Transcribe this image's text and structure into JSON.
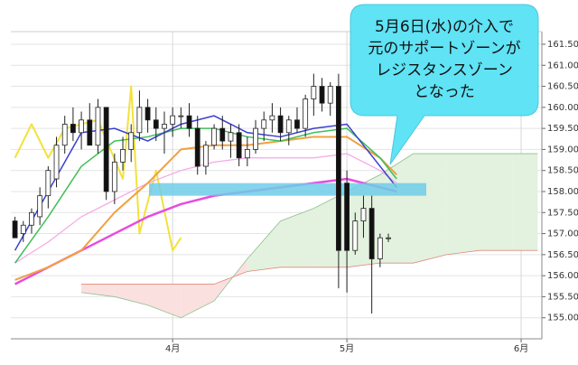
{
  "chart_data": {
    "type": "candlestick",
    "xlim": [
      -0.5,
      63.5
    ],
    "ylim": [
      154.5,
      161.8
    ],
    "xticks": [
      {
        "value": 19,
        "label": "4月"
      },
      {
        "value": 40,
        "label": "5月"
      },
      {
        "value": 61,
        "label": "6月"
      }
    ],
    "yticks": [
      {
        "value": 155,
        "label": "155.00"
      },
      {
        "value": 155.5,
        "label": "155.50"
      },
      {
        "value": 156,
        "label": "156.00"
      },
      {
        "value": 156.5,
        "label": "156.50"
      },
      {
        "value": 157,
        "label": "157.00"
      },
      {
        "value": 157.5,
        "label": "157.50"
      },
      {
        "value": 158,
        "label": "158.00"
      },
      {
        "value": 158.5,
        "label": "158.50"
      },
      {
        "value": 159,
        "label": "159.00"
      },
      {
        "value": 159.5,
        "label": "159.50"
      },
      {
        "value": 160,
        "label": "160.00"
      },
      {
        "value": 160.5,
        "label": "160.50"
      },
      {
        "value": 161,
        "label": "161.00"
      },
      {
        "value": 161.5,
        "label": "161.50"
      }
    ],
    "grid": true,
    "cloud": {
      "x": [
        8,
        12,
        16,
        20,
        24,
        28,
        32,
        36,
        40,
        44,
        48,
        52,
        56,
        60,
        63
      ],
      "span_a": [
        155.6,
        155.5,
        155.3,
        155.0,
        155.4,
        156.4,
        157.3,
        157.6,
        158.0,
        158.4,
        158.9,
        158.9,
        158.9,
        158.9,
        158.9
      ],
      "span_b": [
        155.8,
        155.8,
        155.8,
        155.8,
        155.8,
        156.1,
        156.2,
        156.2,
        156.2,
        156.3,
        156.3,
        156.5,
        156.6,
        156.6,
        156.6
      ],
      "up_color": "#e3f1df",
      "down_color": "#fbe0e0",
      "a_color": "#8cc08c",
      "b_color": "#e08a7a"
    },
    "zone": {
      "range": [
        157.9,
        158.2
      ],
      "color": "#6fcde8"
    },
    "lines": [
      {
        "color": "#f2e23a",
        "width": 2,
        "x": [
          0,
          2,
          4,
          6,
          10,
          13,
          14,
          15,
          17,
          19,
          20
        ],
        "values": [
          158.8,
          159.6,
          158.8,
          159.5,
          159.7,
          158.3,
          160.5,
          157.0,
          158.5,
          156.6,
          156.9
        ]
      },
      {
        "color": "#f5a7e6",
        "width": 1.2,
        "x": [
          0,
          4,
          8,
          12,
          16,
          20,
          24,
          28,
          32,
          36,
          40,
          44,
          46
        ],
        "values": [
          156.3,
          156.8,
          157.4,
          157.8,
          158.2,
          158.5,
          158.7,
          158.8,
          158.8,
          158.8,
          158.9,
          158.5,
          158.2
        ]
      },
      {
        "color": "#e64ce0",
        "width": 2.5,
        "x": [
          0,
          4,
          8,
          12,
          16,
          20,
          24,
          28,
          32,
          36,
          40,
          44,
          46
        ],
        "values": [
          155.8,
          156.2,
          156.6,
          157.0,
          157.4,
          157.7,
          157.9,
          158.0,
          158.1,
          158.2,
          158.3,
          158.1,
          158.0
        ]
      },
      {
        "color": "#f0a040",
        "width": 2,
        "x": [
          0,
          4,
          8,
          12,
          16,
          20,
          24,
          28,
          32,
          36,
          40,
          44,
          46
        ],
        "values": [
          155.9,
          156.2,
          156.6,
          157.5,
          158.2,
          159.0,
          159.1,
          159.1,
          159.2,
          159.3,
          159.3,
          158.8,
          158.4
        ]
      },
      {
        "color": "#3fbf5a",
        "width": 1.5,
        "x": [
          0,
          4,
          8,
          12,
          16,
          20,
          24,
          28,
          32,
          36,
          40,
          44,
          46
        ],
        "values": [
          156.3,
          157.4,
          158.6,
          159.2,
          159.3,
          159.5,
          159.5,
          159.3,
          159.2,
          159.4,
          159.5,
          158.8,
          158.3
        ]
      },
      {
        "color": "#3a3fd0",
        "width": 1.5,
        "x": [
          0,
          4,
          8,
          12,
          16,
          20,
          24,
          28,
          32,
          36,
          40,
          44,
          46
        ],
        "values": [
          156.6,
          158.0,
          159.4,
          159.5,
          159.2,
          159.6,
          159.8,
          159.4,
          159.3,
          159.5,
          159.6,
          158.6,
          158.1
        ]
      }
    ],
    "candles": {
      "up_color": "#ffffff",
      "down_color": "#111111",
      "x": [
        0,
        1,
        2,
        3,
        4,
        5,
        6,
        7,
        8,
        9,
        10,
        11,
        12,
        13,
        14,
        15,
        16,
        17,
        18,
        19,
        20,
        21,
        22,
        23,
        24,
        25,
        26,
        27,
        28,
        29,
        30,
        31,
        32,
        33,
        34,
        35,
        36,
        37,
        38,
        39,
        40,
        41,
        42,
        43,
        44,
        45
      ],
      "open": [
        157.3,
        157.0,
        157.2,
        157.4,
        157.9,
        158.3,
        159.1,
        159.6,
        159.4,
        159.7,
        159.1,
        160.0,
        158.0,
        158.7,
        159.0,
        159.4,
        160.0,
        159.7,
        159.5,
        159.6,
        159.8,
        159.8,
        159.5,
        158.6,
        159.1,
        159.5,
        159.2,
        159.4,
        158.8,
        159.0,
        159.5,
        159.7,
        159.8,
        159.4,
        159.7,
        159.5,
        160.2,
        160.5,
        160.1,
        160.5,
        158.2,
        156.6,
        157.3,
        157.6,
        156.4,
        156.9
      ],
      "high": [
        157.4,
        157.3,
        157.6,
        158.1,
        158.6,
        159.3,
        159.8,
        160.0,
        159.9,
        160.1,
        160.2,
        160.0,
        158.9,
        159.3,
        159.6,
        160.4,
        160.2,
        160.0,
        159.9,
        160.0,
        160.0,
        160.1,
        159.8,
        159.2,
        159.6,
        159.8,
        159.6,
        159.6,
        159.3,
        159.7,
        159.9,
        160.1,
        160.0,
        159.8,
        160.0,
        160.3,
        160.8,
        160.7,
        160.6,
        160.8,
        158.5,
        157.5,
        157.9,
        157.9,
        157.0,
        157.0
      ],
      "low": [
        156.9,
        156.8,
        157.0,
        157.2,
        157.6,
        158.1,
        158.9,
        159.2,
        159.0,
        159.3,
        158.9,
        157.8,
        157.7,
        158.5,
        158.7,
        159.2,
        159.4,
        159.2,
        158.9,
        159.3,
        159.5,
        159.3,
        158.4,
        158.4,
        159.0,
        159.0,
        158.8,
        158.6,
        158.6,
        158.9,
        159.2,
        159.4,
        159.2,
        159.1,
        159.4,
        159.3,
        159.8,
        159.9,
        159.8,
        155.7,
        155.6,
        156.5,
        156.9,
        155.1,
        156.2,
        156.8
      ],
      "close": [
        156.9,
        157.2,
        157.5,
        157.9,
        158.5,
        159.1,
        159.6,
        159.4,
        159.7,
        159.1,
        160.0,
        158.0,
        158.7,
        159.0,
        159.4,
        160.0,
        159.7,
        159.5,
        159.6,
        159.8,
        159.8,
        159.5,
        158.6,
        159.1,
        159.5,
        159.2,
        159.4,
        158.8,
        159.0,
        159.5,
        159.7,
        159.8,
        159.4,
        159.7,
        159.5,
        160.2,
        160.5,
        160.1,
        160.5,
        156.6,
        156.6,
        157.3,
        157.6,
        156.4,
        156.9,
        156.9
      ]
    },
    "annotation": {
      "lines": [
        "5月6日(水)の介入で",
        "元のサポートゾーンが",
        "レジスタンスゾーン",
        "となった"
      ],
      "color": "#5fe3f5"
    }
  }
}
